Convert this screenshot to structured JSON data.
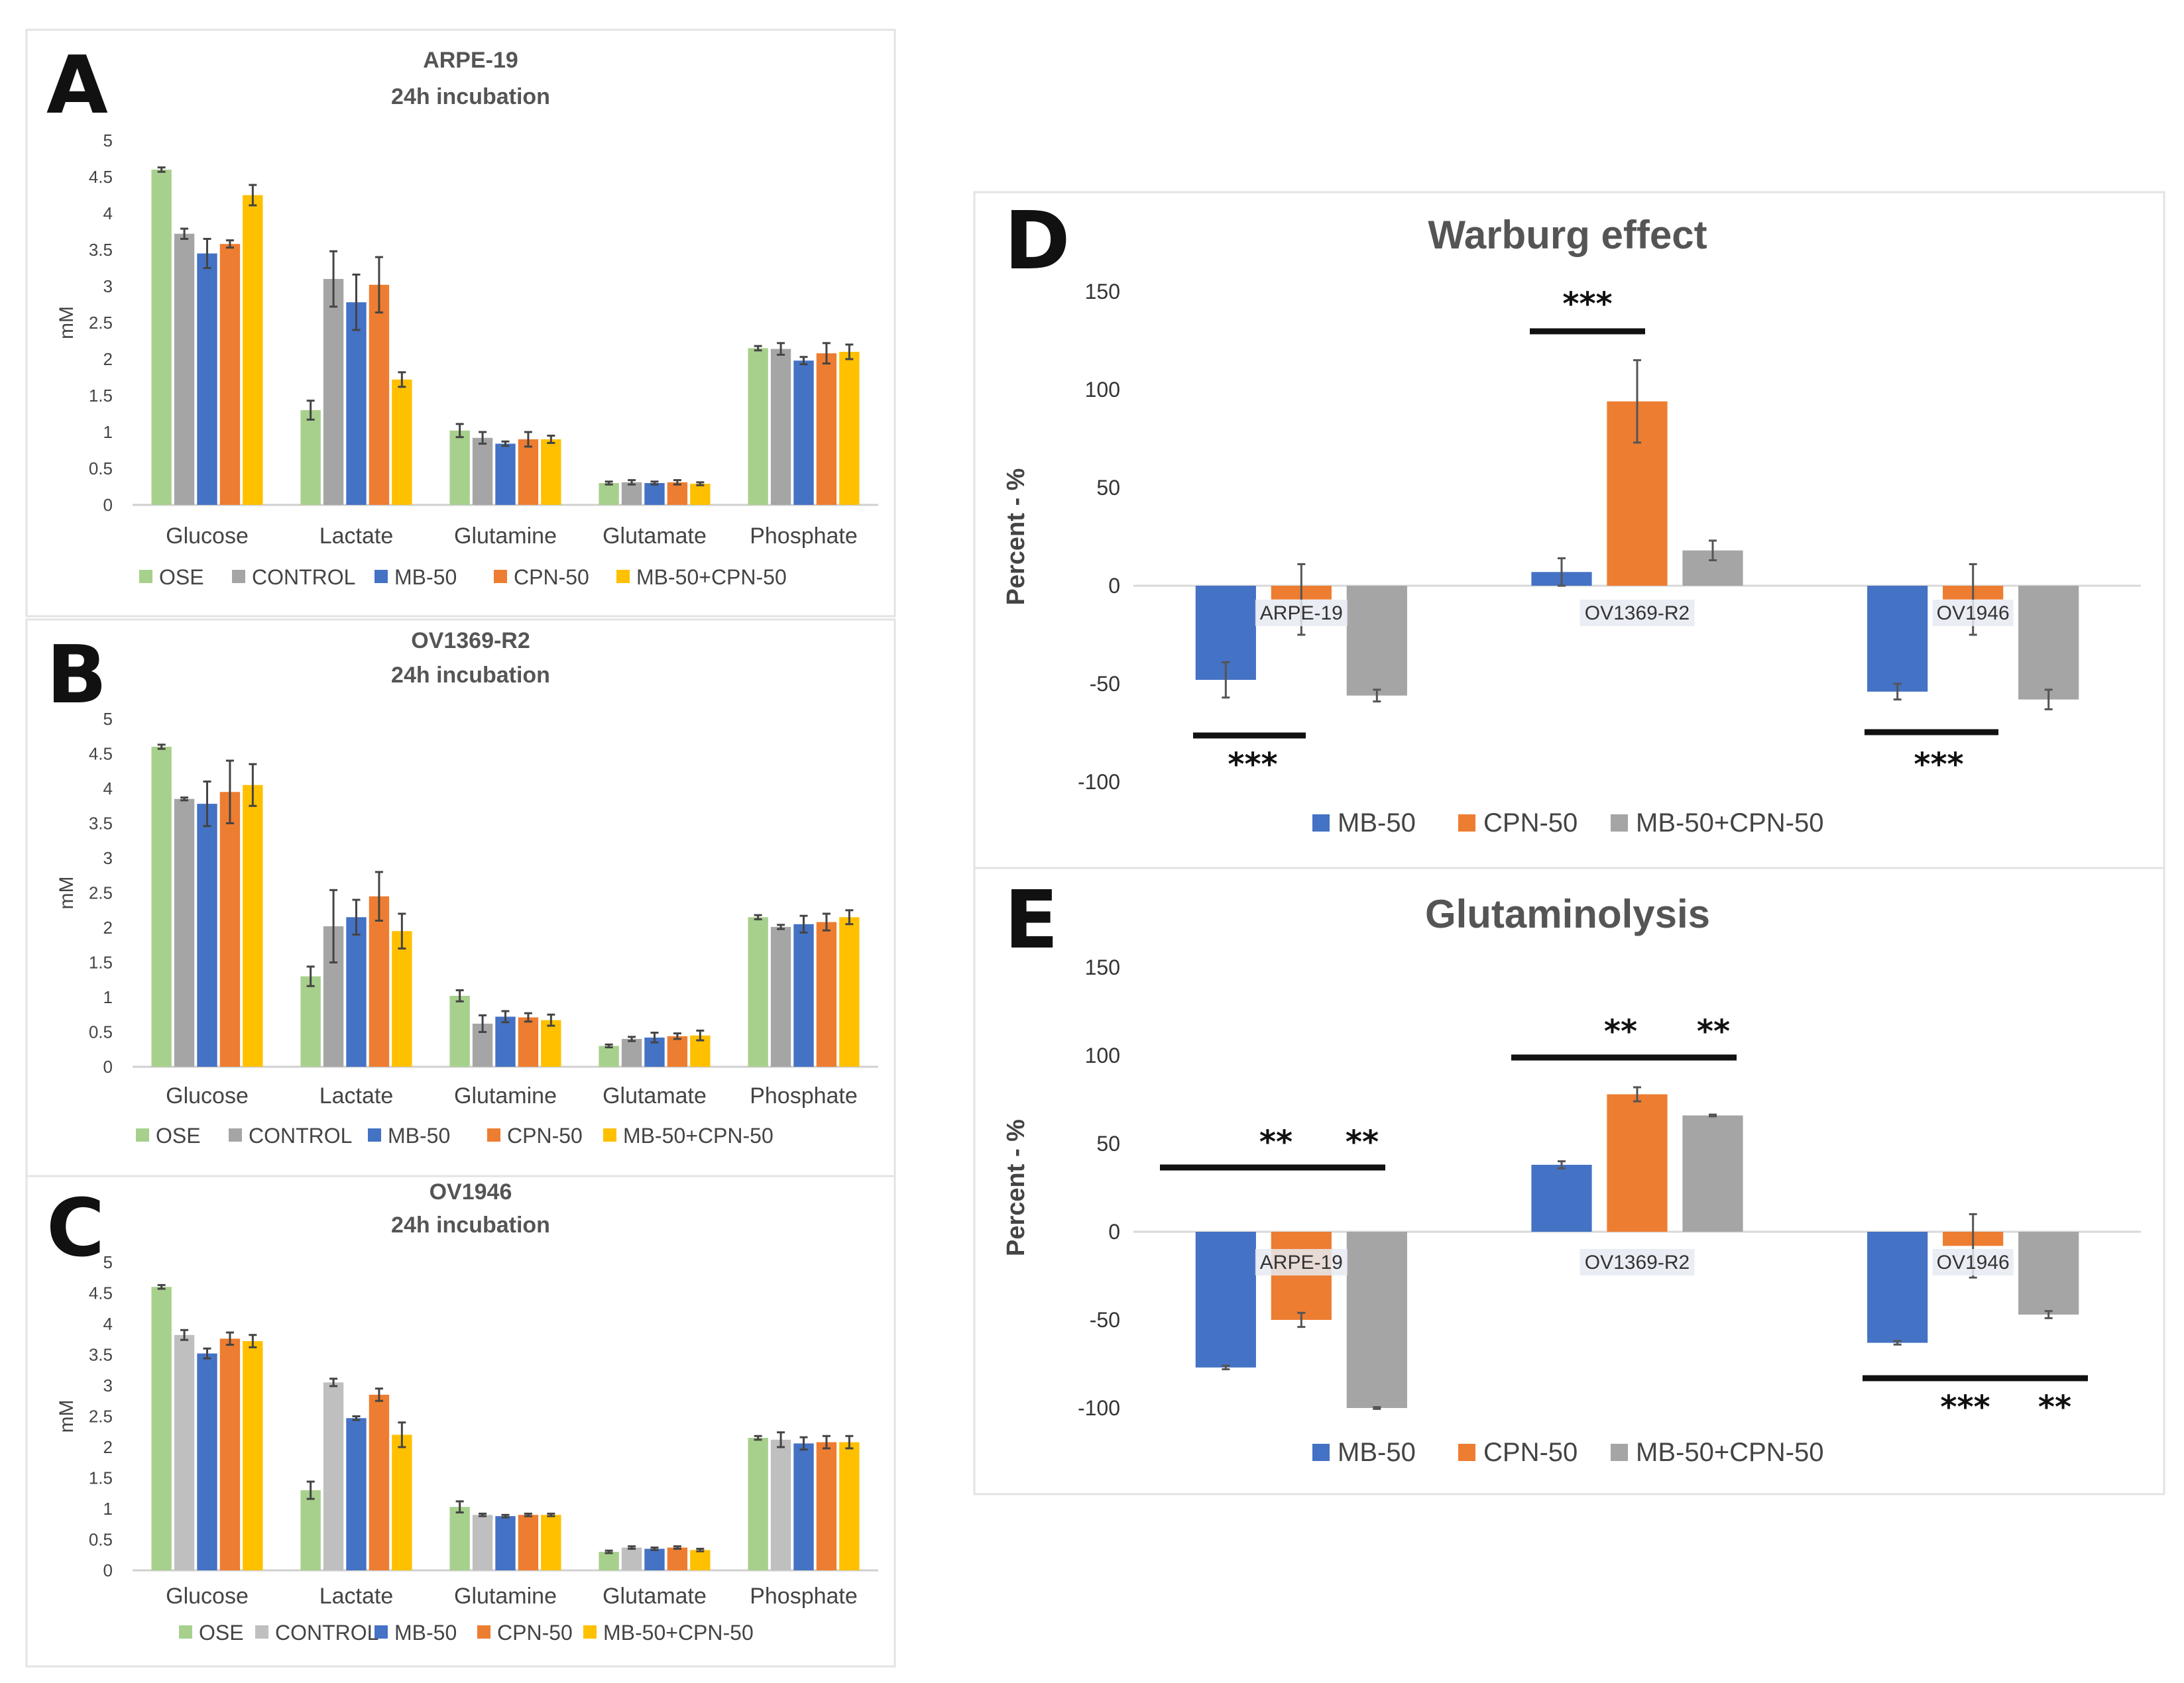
{
  "panels_left": [
    {
      "letter": "A",
      "title_line1": "ARPE-19",
      "title_line2": "24h incubation",
      "ylabel": "mM",
      "ylim": [
        0,
        5
      ],
      "yticks": [
        "0",
        "0.5",
        "1",
        "1.5",
        "2",
        "2.5",
        "3",
        "3.5",
        "4",
        "4.5",
        "5"
      ],
      "categories": [
        "Glucose",
        "Lactate",
        "Glutamine",
        "Glutamate",
        "Phosphate"
      ],
      "series": [
        {
          "name": "OSE",
          "values": [
            4.6,
            1.3,
            1.02,
            0.3,
            2.15
          ],
          "errors": [
            0.03,
            0.13,
            0.09,
            0.02,
            0.03
          ]
        },
        {
          "name": "CONTROL",
          "values": [
            3.72,
            3.1,
            0.92,
            0.31,
            2.14
          ],
          "errors": [
            0.07,
            0.38,
            0.08,
            0.03,
            0.08
          ]
        },
        {
          "name": "MB-50",
          "values": [
            3.45,
            2.78,
            0.84,
            0.3,
            1.98
          ],
          "errors": [
            0.2,
            0.38,
            0.03,
            0.02,
            0.05
          ]
        },
        {
          "name": "CPN-50",
          "values": [
            3.58,
            3.02,
            0.9,
            0.31,
            2.08
          ],
          "errors": [
            0.05,
            0.38,
            0.1,
            0.03,
            0.14
          ]
        },
        {
          "name": "MB-50+CPN-50",
          "values": [
            4.25,
            1.72,
            0.9,
            0.29,
            2.1
          ],
          "errors": [
            0.14,
            0.1,
            0.05,
            0.02,
            0.1
          ]
        }
      ]
    },
    {
      "letter": "B",
      "title_line1": "OV1369-R2",
      "title_line2": "24h incubation",
      "ylabel": "mM",
      "ylim": [
        0,
        5
      ],
      "yticks": [
        "0",
        "0.5",
        "1",
        "1.5",
        "2",
        "2.5",
        "3",
        "3.5",
        "4",
        "4.5",
        "5"
      ],
      "categories": [
        "Glucose",
        "Lactate",
        "Glutamine",
        "Glutamate",
        "Phosphate"
      ],
      "series": [
        {
          "name": "OSE",
          "values": [
            4.6,
            1.3,
            1.02,
            0.3,
            2.15
          ],
          "errors": [
            0.03,
            0.14,
            0.08,
            0.02,
            0.03
          ]
        },
        {
          "name": "CONTROL",
          "values": [
            3.85,
            2.02,
            0.62,
            0.4,
            2.01
          ],
          "errors": [
            0.02,
            0.52,
            0.12,
            0.03,
            0.03
          ]
        },
        {
          "name": "MB-50",
          "values": [
            3.78,
            2.15,
            0.72,
            0.42,
            2.05
          ],
          "errors": [
            0.32,
            0.25,
            0.08,
            0.07,
            0.12
          ]
        },
        {
          "name": "CPN-50",
          "values": [
            3.95,
            2.45,
            0.71,
            0.44,
            2.08
          ],
          "errors": [
            0.45,
            0.35,
            0.06,
            0.04,
            0.12
          ]
        },
        {
          "name": "MB-50+CPN-50",
          "values": [
            4.05,
            1.95,
            0.67,
            0.45,
            2.15
          ],
          "errors": [
            0.3,
            0.25,
            0.08,
            0.07,
            0.1
          ]
        }
      ]
    },
    {
      "letter": "C",
      "title_line1": "OV1946",
      "title_line2": "24h incubation",
      "ylabel": "mM",
      "ylim": [
        0,
        5
      ],
      "yticks": [
        "0",
        "0.5",
        "1",
        "1.5",
        "2",
        "2.5",
        "3",
        "3.5",
        "4",
        "4.5",
        "5"
      ],
      "categories": [
        "Glucose",
        "Lactate",
        "Glutamine",
        "Glutamate",
        "Phosphate"
      ],
      "series": [
        {
          "name": "OSE",
          "values": [
            4.6,
            1.3,
            1.03,
            0.3,
            2.15
          ],
          "errors": [
            0.03,
            0.14,
            0.09,
            0.02,
            0.03
          ]
        },
        {
          "name": "CONTROL",
          "values": [
            3.82,
            3.05,
            0.9,
            0.37,
            2.12
          ],
          "errors": [
            0.08,
            0.06,
            0.02,
            0.02,
            0.12
          ]
        },
        {
          "name": "MB-50",
          "values": [
            3.52,
            2.47,
            0.88,
            0.35,
            2.06
          ],
          "errors": [
            0.08,
            0.03,
            0.02,
            0.02,
            0.1
          ]
        },
        {
          "name": "CPN-50",
          "values": [
            3.76,
            2.85,
            0.9,
            0.37,
            2.08
          ],
          "errors": [
            0.1,
            0.1,
            0.02,
            0.02,
            0.1
          ]
        },
        {
          "name": "MB-50+CPN-50",
          "values": [
            3.72,
            2.2,
            0.9,
            0.33,
            2.08
          ],
          "errors": [
            0.1,
            0.2,
            0.02,
            0.02,
            0.1
          ]
        }
      ]
    }
  ],
  "panels_right": [
    {
      "letter": "D",
      "title": "Warburg effect",
      "ylabel": "Percent - %",
      "ylim": [
        -100,
        150
      ],
      "yticks": [
        "-100",
        "-50",
        "0",
        "50",
        "100",
        "150"
      ],
      "categories": [
        "ARPE-19",
        "OV1369-R2",
        "OV1946"
      ],
      "series": [
        {
          "name": "MB-50",
          "values": [
            -48,
            7,
            -54
          ],
          "errors": [
            9,
            7,
            4
          ]
        },
        {
          "name": "CPN-50",
          "values": [
            -7,
            94,
            -7
          ],
          "errors": [
            18,
            21,
            18
          ]
        },
        {
          "name": "MB-50+CPN-50",
          "values": [
            -56,
            18,
            -58
          ],
          "errors": [
            3,
            5,
            5
          ]
        }
      ],
      "significance": [
        "***",
        "***",
        "***"
      ]
    },
    {
      "letter": "E",
      "title": "Glutaminolysis",
      "ylabel": "Percent - %",
      "ylim": [
        -100,
        150
      ],
      "yticks": [
        "-100",
        "-50",
        "0",
        "50",
        "100",
        "150"
      ],
      "categories": [
        "ARPE-19",
        "OV1369-R2",
        "OV1946"
      ],
      "series": [
        {
          "name": "MB-50",
          "values": [
            -77,
            38,
            -63
          ],
          "errors": [
            1,
            2,
            1
          ]
        },
        {
          "name": "CPN-50",
          "values": [
            -50,
            78,
            -8
          ],
          "errors": [
            4,
            4,
            18
          ]
        },
        {
          "name": "MB-50+CPN-50",
          "values": [
            -100,
            66,
            -47
          ],
          "errors": [
            0.5,
            0.5,
            2
          ]
        }
      ],
      "significance": [
        "**",
        "**",
        "**",
        "**",
        "***",
        "**"
      ]
    }
  ],
  "colors": {
    "OSE": "#a8d08d",
    "CONTROL": "#a5a5a5",
    "CONTROL_C": "#bfbfbf",
    "MB-50": "#4472c4",
    "MB-50_B": "#1f6fc2",
    "CPN-50": "#ed7d31",
    "MB-50+CPN-50": "#ffc000",
    "MB-50+CPN-50_R": "#a5a5a5"
  }
}
